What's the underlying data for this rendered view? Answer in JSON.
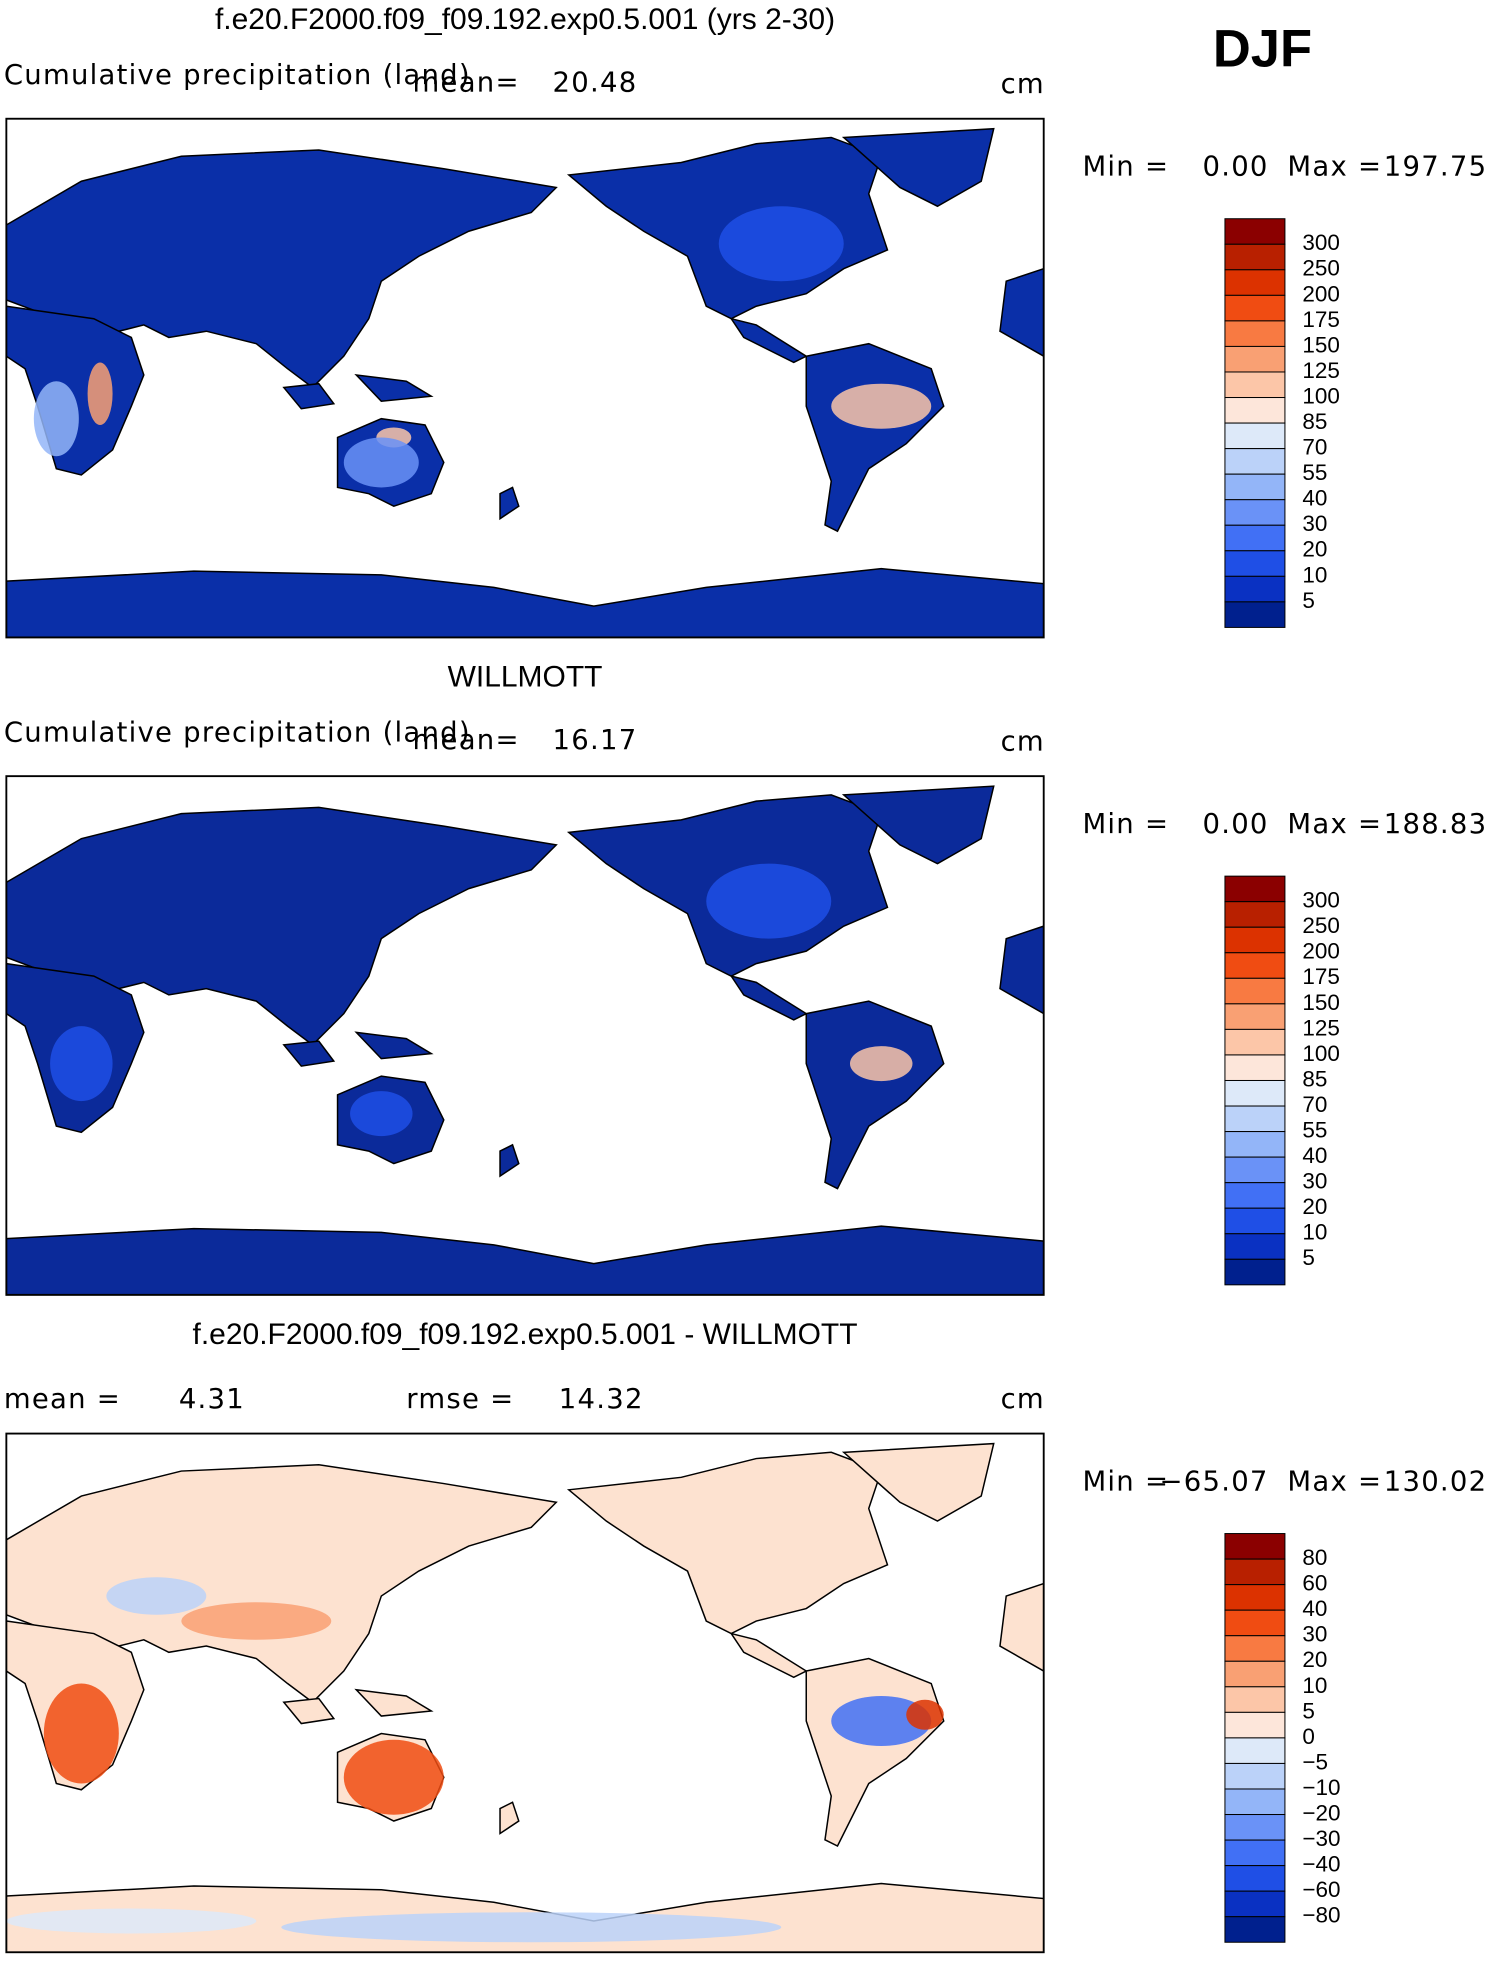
{
  "header": {
    "season": "DJF"
  },
  "panels": [
    {
      "title": "f.e20.F2000.f09_f09.192.exp0.5.001 (yrs 2-30)",
      "variable": "Cumulative precipitation (land)",
      "mean_label": "mean=",
      "mean": "20.48",
      "units": "cm",
      "min_label": "Min =",
      "min": "0.00",
      "max_label": "Max =",
      "max": "197.75",
      "colorbar": {
        "labels": [
          "300",
          "250",
          "200",
          "175",
          "150",
          "125",
          "100",
          "85",
          "70",
          "55",
          "40",
          "30",
          "20",
          "10",
          "5"
        ],
        "colors": [
          "#8b0000",
          "#b82000",
          "#dc3200",
          "#f04c12",
          "#f87a42",
          "#f9a073",
          "#fcc6a8",
          "#fde6da",
          "#dde9f9",
          "#bbd2f9",
          "#93b5f8",
          "#6a92f7",
          "#4170f5",
          "#1f4fe6",
          "#0a31c2",
          "#00208e"
        ]
      }
    },
    {
      "title": "WILLMOTT",
      "variable": "Cumulative precipitation (land)",
      "mean_label": "mean=",
      "mean": "16.17",
      "units": "cm",
      "min_label": "Min =",
      "min": "0.00",
      "max_label": "Max =",
      "max": "188.83",
      "colorbar": {
        "labels": [
          "300",
          "250",
          "200",
          "175",
          "150",
          "125",
          "100",
          "85",
          "70",
          "55",
          "40",
          "30",
          "20",
          "10",
          "5"
        ],
        "colors": [
          "#8b0000",
          "#b82000",
          "#dc3200",
          "#f04c12",
          "#f87a42",
          "#f9a073",
          "#fcc6a8",
          "#fde6da",
          "#dde9f9",
          "#bbd2f9",
          "#93b5f8",
          "#6a92f7",
          "#4170f5",
          "#1f4fe6",
          "#0a31c2",
          "#00208e"
        ]
      }
    },
    {
      "title": "f.e20.F2000.f09_f09.192.exp0.5.001 - WILLMOTT",
      "mean_label": "mean =",
      "mean": "4.31",
      "rmse_label": "rmse =",
      "rmse": "14.32",
      "units": "cm",
      "min_label": "Min =",
      "min": "−65.07",
      "max_label": "Max =",
      "max": "130.02",
      "colorbar": {
        "labels": [
          "80",
          "60",
          "40",
          "30",
          "20",
          "10",
          "5",
          "0",
          "−5",
          "−10",
          "−20",
          "−30",
          "−40",
          "−60",
          "−80"
        ],
        "colors": [
          "#8b0000",
          "#b82000",
          "#dc3200",
          "#f04c12",
          "#f87a42",
          "#f9a073",
          "#fcc6a8",
          "#fde6da",
          "#dde9f9",
          "#bbd2f9",
          "#93b5f8",
          "#6a92f7",
          "#4170f5",
          "#1f4fe6",
          "#0a31c2",
          "#00208e"
        ]
      }
    }
  ]
}
